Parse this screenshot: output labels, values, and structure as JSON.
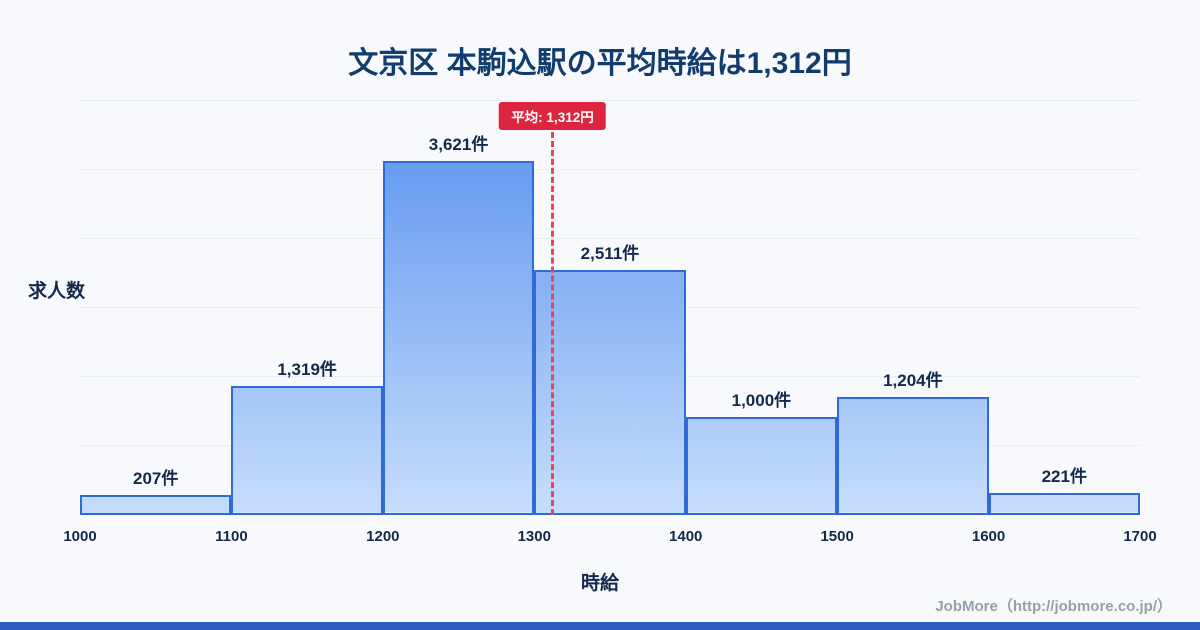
{
  "title": "文京区 本駒込駅の平均時給は1,312円",
  "footer": "JobMore（http://jobmore.co.jp/）",
  "chart_data": {
    "type": "bar",
    "title": "文京区 本駒込駅の平均時給は1,312円",
    "xlabel": "時給",
    "ylabel": "求人数",
    "bin_edges": [
      1000,
      1100,
      1200,
      1300,
      1400,
      1500,
      1600,
      1700
    ],
    "x_ticks": [
      "1000",
      "1100",
      "1200",
      "1300",
      "1400",
      "1500",
      "1600",
      "1700"
    ],
    "categories": [
      "1000-1100",
      "1100-1200",
      "1200-1300",
      "1300-1400",
      "1400-1500",
      "1500-1600",
      "1600-1700"
    ],
    "values": [
      207,
      1319,
      3621,
      2511,
      1000,
      1204,
      221
    ],
    "value_labels": [
      "207件",
      "1,319件",
      "3,621件",
      "2,511件",
      "1,000件",
      "1,204件",
      "221件"
    ],
    "average": 1312,
    "average_label": "平均: 1,312円",
    "xlim": [
      1000,
      1700
    ],
    "ylim": [
      0,
      4250
    ],
    "grid": true,
    "legend": false,
    "colors": {
      "bar_top": "#5590ee",
      "bar_bottom": "#c7ddfc",
      "bar_border": "#2f6ad9",
      "average_line": "#ee4254",
      "badge_bg": "#dd2540",
      "title": "#123c6d",
      "accent_bar": "#2e5bbf"
    }
  }
}
